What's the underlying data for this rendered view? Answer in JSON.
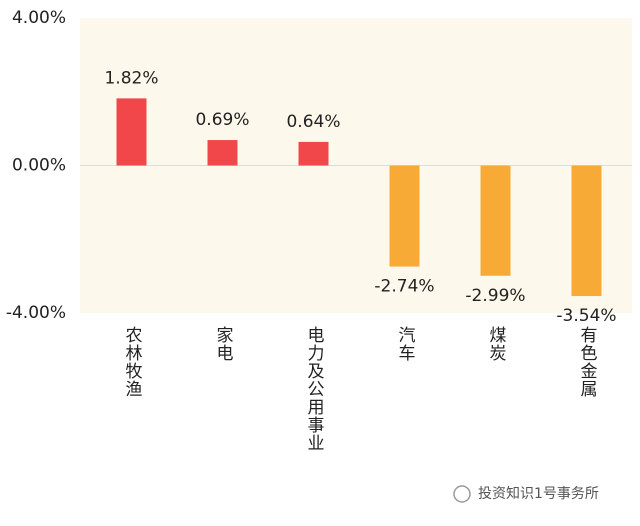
{
  "chart_data": {
    "type": "bar",
    "categories": [
      "农林牧渔",
      "家电",
      "电力及公用事业",
      "汽车",
      "煤炭",
      "有色金属"
    ],
    "values": [
      1.82,
      0.69,
      0.64,
      -2.74,
      -2.99,
      -3.54
    ],
    "value_labels": [
      "1.82%",
      "0.69%",
      "0.64%",
      "-2.74%",
      "-2.99%",
      "-3.54%"
    ],
    "colors": [
      "#f2474a",
      "#f2474a",
      "#f2474a",
      "#f8aa36",
      "#f8aa36",
      "#f8aa36"
    ],
    "ylim": [
      -4,
      4
    ],
    "yticks": [
      {
        "value": 4,
        "label": "4.00%"
      },
      {
        "value": 0,
        "label": "0.00%"
      },
      {
        "value": -4,
        "label": "-4.00%"
      }
    ],
    "zero_line": true
  },
  "watermark": "投资知识1号事务所"
}
